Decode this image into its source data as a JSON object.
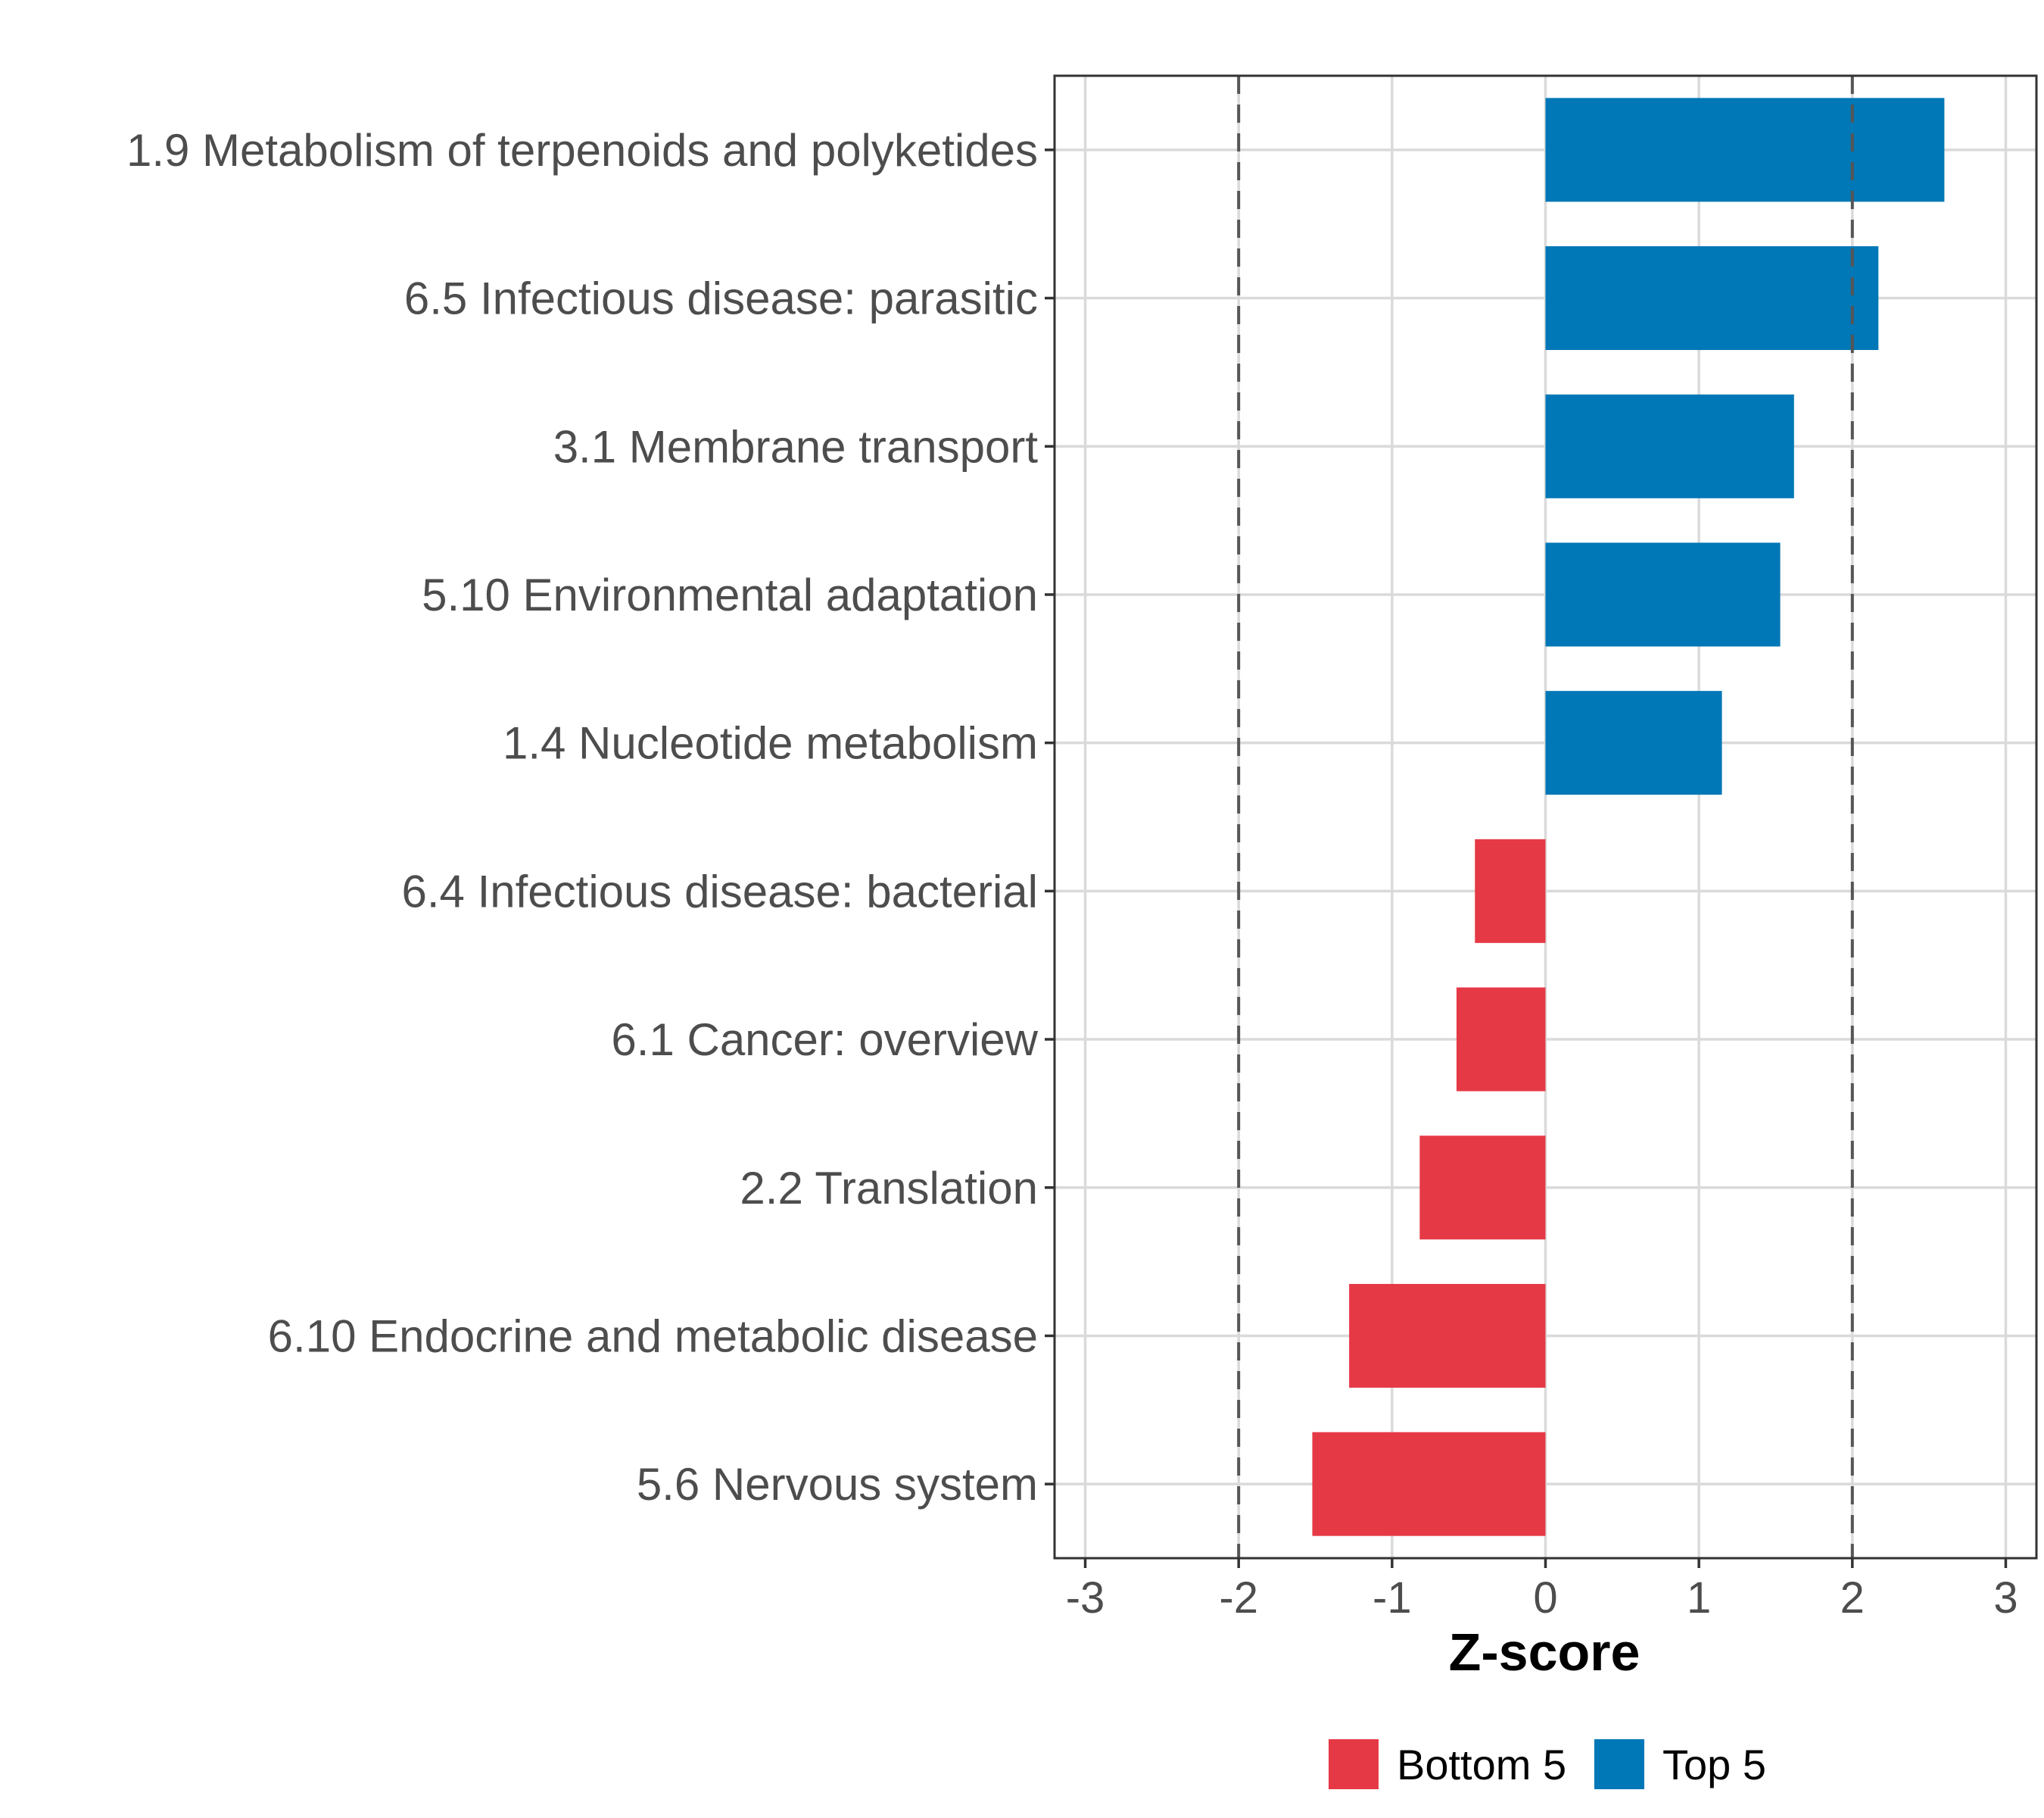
{
  "chart_data": {
    "type": "bar",
    "orientation": "horizontal",
    "title": "",
    "xlabel": "Z-score",
    "ylabel": "",
    "xlim": [
      -3.2,
      3.2
    ],
    "xticks": [
      -3,
      -2,
      -1,
      0,
      1,
      2,
      3
    ],
    "xtick_labels": [
      "-3",
      "-2",
      "-1",
      "0",
      "1",
      "2",
      "3"
    ],
    "reference_lines": [
      -2,
      2
    ],
    "grid": true,
    "legend_position": "bottom",
    "categories": [
      "1.9 Metabolism of terpenoids and polyketides",
      "6.5 Infectious disease: parasitic",
      "3.1 Membrane transport",
      "5.10 Environmental adaptation",
      "1.4 Nucleotide metabolism",
      "6.4 Infectious disease: bacterial",
      "6.1 Cancer: overview",
      "2.2 Translation",
      "6.10 Endocrine and metabolic disease",
      "5.6 Nervous system"
    ],
    "values": [
      2.6,
      2.17,
      1.62,
      1.53,
      1.15,
      -0.46,
      -0.58,
      -0.82,
      -1.28,
      -1.52
    ],
    "groups": [
      "Top 5",
      "Top 5",
      "Top 5",
      "Top 5",
      "Top 5",
      "Bottom 5",
      "Bottom 5",
      "Bottom 5",
      "Bottom 5",
      "Bottom 5"
    ],
    "legend": [
      {
        "name": "Bottom 5",
        "color": "#e63946"
      },
      {
        "name": "Top 5",
        "color": "#0077b6"
      }
    ]
  }
}
